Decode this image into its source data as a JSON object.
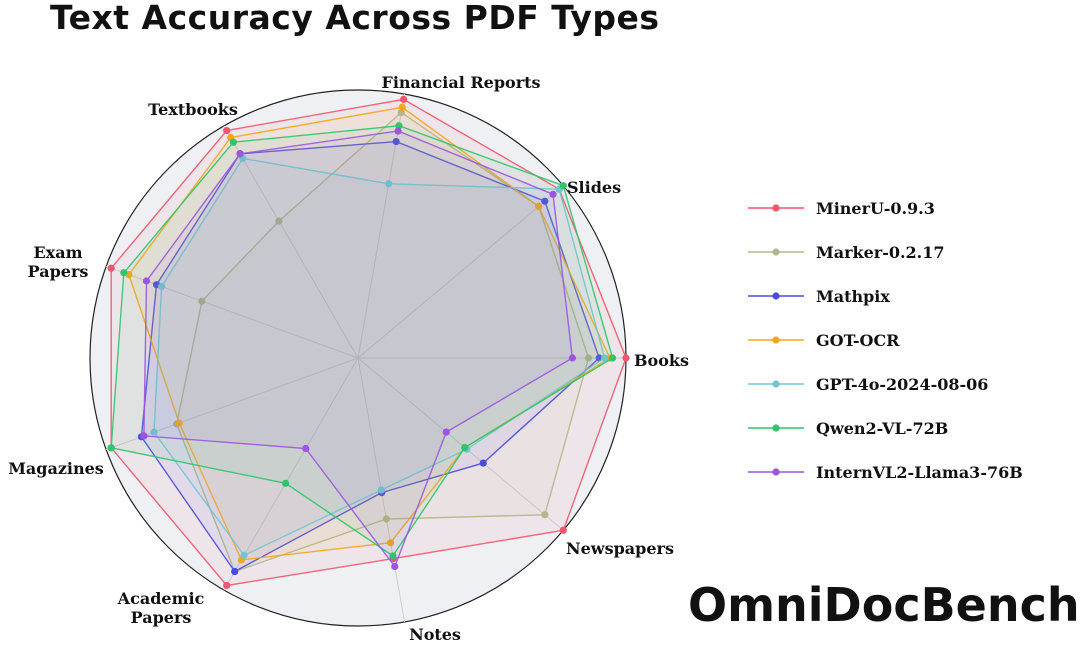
{
  "title": "Text Accuracy Across PDF Types",
  "brand": "OmniDocBench",
  "chart_data": {
    "type": "radar",
    "title": "Text Accuracy Across PDF Types",
    "categories": [
      "Books",
      "Slides",
      "Financial Reports",
      "Textbooks",
      "Exam Papers",
      "Magazines",
      "Academic Papers",
      "Notes",
      "Newspapers"
    ],
    "range": [
      0,
      1
    ],
    "grid": true,
    "legend_position": "right",
    "series": [
      {
        "name": "MinerU-0.9.3",
        "color": "#f0566d",
        "values": [
          1.0,
          0.98,
          0.98,
          0.98,
          0.98,
          0.98,
          0.98,
          0.76,
          1.0
        ]
      },
      {
        "name": "Marker-0.2.17",
        "color": "#b3b78a",
        "values": [
          0.86,
          0.88,
          0.93,
          0.59,
          0.62,
          0.72,
          0.92,
          0.61,
          0.91
        ]
      },
      {
        "name": "Mathpix",
        "color": "#4b4bdd",
        "values": [
          0.9,
          0.91,
          0.82,
          0.88,
          0.8,
          0.86,
          0.92,
          0.51,
          0.61
        ]
      },
      {
        "name": "GOT-OCR",
        "color": "#f7a51c",
        "values": [
          0.94,
          0.88,
          0.95,
          0.95,
          0.91,
          0.71,
          0.87,
          0.7,
          0.52
        ]
      },
      {
        "name": "GPT-4o-2024-08-06",
        "color": "#73c5d4",
        "values": [
          0.92,
          0.98,
          0.66,
          0.86,
          0.78,
          0.81,
          0.85,
          0.5,
          0.53
        ]
      },
      {
        "name": "Qwen2-VL-72B",
        "color": "#2fc56c",
        "values": [
          0.95,
          1.0,
          0.88,
          0.93,
          0.93,
          0.98,
          0.54,
          0.75,
          0.52
        ]
      },
      {
        "name": "InternVL2-Llama3-76B",
        "color": "#9b55e0",
        "values": [
          0.8,
          0.95,
          0.86,
          0.88,
          0.84,
          0.85,
          0.39,
          0.79,
          0.43
        ]
      }
    ]
  }
}
